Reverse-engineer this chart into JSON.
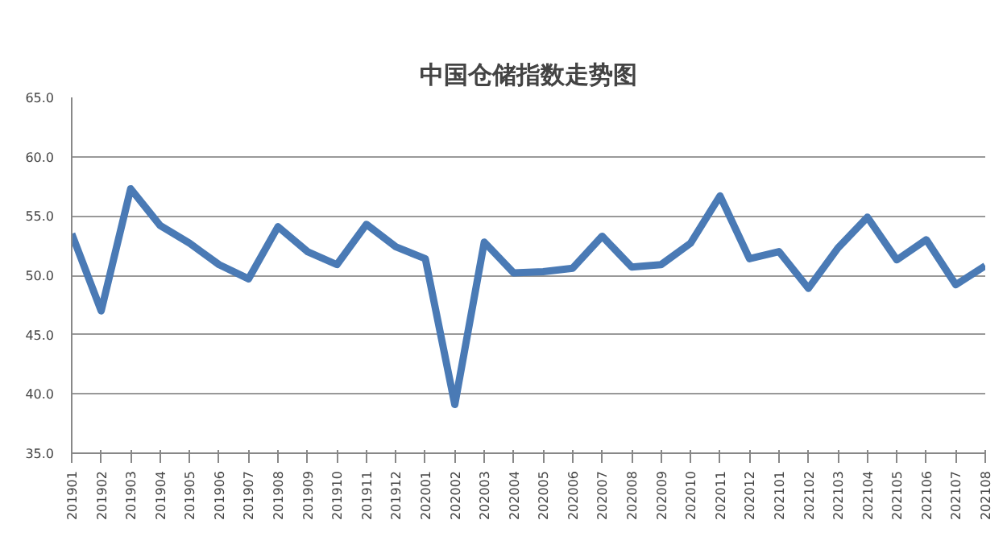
{
  "chart_data": {
    "type": "line",
    "title": "中国仓储指数走势图",
    "categories": [
      "201901",
      "201902",
      "201903",
      "201904",
      "201905",
      "201906",
      "201907",
      "201908",
      "201909",
      "201910",
      "201911",
      "201912",
      "202001",
      "202002",
      "202003",
      "202004",
      "202005",
      "202006",
      "202007",
      "202008",
      "202009",
      "202010",
      "202011",
      "202012",
      "202101",
      "202102",
      "202103",
      "202104",
      "202105",
      "202106",
      "202107",
      "202108"
    ],
    "series": [
      {
        "color": "#4a7ab5",
        "values": [
          53.5,
          47.0,
          57.3,
          54.2,
          52.7,
          50.9,
          49.7,
          54.1,
          52.0,
          50.9,
          54.3,
          52.4,
          51.4,
          39.1,
          52.8,
          50.2,
          50.3,
          50.6,
          53.3,
          50.7,
          50.9,
          52.7,
          56.7,
          51.4,
          52.0,
          48.9,
          52.3,
          54.9,
          51.3,
          53.0,
          49.2,
          50.8
        ]
      }
    ],
    "ylim": [
      35,
      65
    ],
    "yticks": [
      {
        "value": 35,
        "label": "35.0"
      },
      {
        "value": 40,
        "label": "40.0"
      },
      {
        "value": 45,
        "label": "45.0"
      },
      {
        "value": 50,
        "label": "50.0"
      },
      {
        "value": 55,
        "label": "55.0"
      },
      {
        "value": 60,
        "label": "60.0"
      },
      {
        "value": 65,
        "label": "65.0"
      }
    ],
    "grid": "y",
    "marker": "none",
    "line_style": "solid"
  }
}
